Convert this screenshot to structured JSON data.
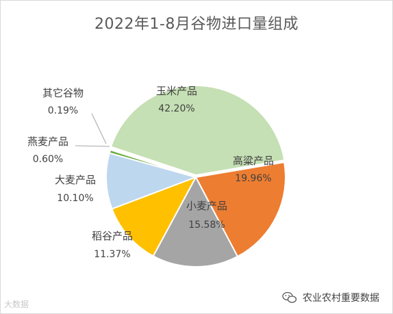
{
  "chart_data": {
    "type": "pie",
    "title": "2022年1-8月谷物进口量组成",
    "start_angle_deg": -9.6,
    "direction": "clockwise",
    "slices": [
      {
        "name": "高粱产品",
        "value": 19.96,
        "label": "19.96%",
        "color": "#ED7D31"
      },
      {
        "name": "小麦产品",
        "value": 15.58,
        "label": "15.58%",
        "color": "#A5A5A5"
      },
      {
        "name": "稻谷产品",
        "value": 11.37,
        "label": "11.37%",
        "color": "#FFC000"
      },
      {
        "name": "大麦产品",
        "value": 10.1,
        "label": "10.10%",
        "color": "#BDD7EE"
      },
      {
        "name": "燕麦产品",
        "value": 0.6,
        "label": "0.60%",
        "color": "#70AD47"
      },
      {
        "name": "其它谷物",
        "value": 0.19,
        "label": "0.19%",
        "color": "#5B9BD5"
      },
      {
        "name": "玉米产品",
        "value": 42.2,
        "label": "42.20%",
        "color": "#C5E0B4"
      }
    ]
  },
  "watermark_left": "大数据",
  "watermark_right": "农业农村重要数据"
}
